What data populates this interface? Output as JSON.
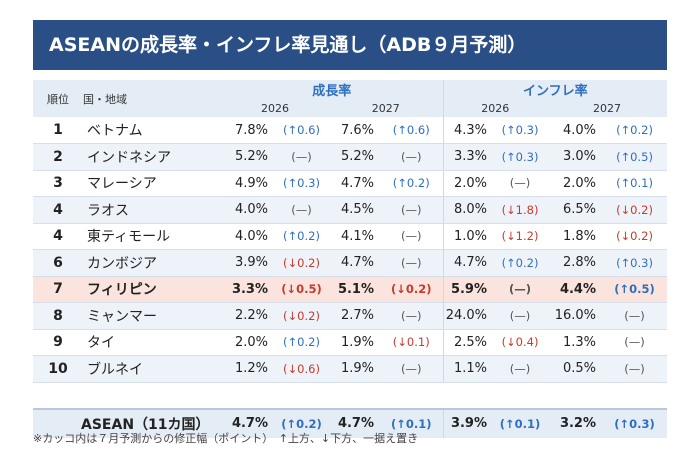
{
  "title": "ASEANの成長率・インフレ率見通し（ADB９月予測）",
  "header": {
    "rank": "順位",
    "country": "国・地域",
    "growth": "成長率",
    "inflation": "インフレ率",
    "years": [
      "2026",
      "2027",
      "2026",
      "2027"
    ]
  },
  "rows": [
    {
      "rank": "1",
      "country": "ベトナム",
      "g26": "7.8%",
      "g26c": "(↑0.6)",
      "g27": "7.6%",
      "g27c": "(↑0.6)",
      "i26": "4.3%",
      "i26c": "(↑0.3)",
      "i27": "4.0%",
      "i27c": "(↑0.2)",
      "dirs": [
        "up",
        "up",
        "up",
        "up"
      ]
    },
    {
      "rank": "2",
      "country": "インドネシア",
      "g26": "5.2%",
      "g26c": "(—)",
      "g27": "5.2%",
      "g27c": "(—)",
      "i26": "3.3%",
      "i26c": "(↑0.3)",
      "i27": "3.0%",
      "i27c": "(↑0.5)",
      "dirs": [
        "same",
        "same",
        "up",
        "up"
      ]
    },
    {
      "rank": "3",
      "country": "マレーシア",
      "g26": "4.9%",
      "g26c": "(↑0.3)",
      "g27": "4.7%",
      "g27c": "(↑0.2)",
      "i26": "2.0%",
      "i26c": "(—)",
      "i27": "2.0%",
      "i27c": "(↑0.1)",
      "dirs": [
        "up",
        "up",
        "same",
        "up"
      ]
    },
    {
      "rank": "4",
      "country": "ラオス",
      "g26": "4.0%",
      "g26c": "(—)",
      "g27": "4.5%",
      "g27c": "(—)",
      "i26": "8.0%",
      "i26c": "(↓1.8)",
      "i27": "6.5%",
      "i27c": "(↓0.2)",
      "dirs": [
        "same",
        "same",
        "down",
        "down"
      ]
    },
    {
      "rank": "4",
      "country": "東ティモール",
      "g26": "4.0%",
      "g26c": "(↑0.2)",
      "g27": "4.1%",
      "g27c": "(—)",
      "i26": "1.0%",
      "i26c": "(↓1.2)",
      "i27": "1.8%",
      "i27c": "(↓0.2)",
      "dirs": [
        "up",
        "same",
        "down",
        "down"
      ]
    },
    {
      "rank": "6",
      "country": "カンボジア",
      "g26": "3.9%",
      "g26c": "(↓0.2)",
      "g27": "4.7%",
      "g27c": "(—)",
      "i26": "4.7%",
      "i26c": "(↑0.2)",
      "i27": "2.8%",
      "i27c": "(↑0.3)",
      "dirs": [
        "down",
        "same",
        "up",
        "up"
      ]
    },
    {
      "rank": "7",
      "country": "フィリピン",
      "g26": "3.3%",
      "g26c": "(↓0.5)",
      "g27": "5.1%",
      "g27c": "(↓0.2)",
      "i26": "5.9%",
      "i26c": "(—)",
      "i27": "4.4%",
      "i27c": "(↑0.5)",
      "dirs": [
        "down",
        "down",
        "same",
        "up"
      ],
      "highlight": true
    },
    {
      "rank": "8",
      "country": "ミャンマー",
      "g26": "2.2%",
      "g26c": "(↓0.2)",
      "g27": "2.7%",
      "g27c": "(—)",
      "i26": "24.0%",
      "i26c": "(—)",
      "i27": "16.0%",
      "i27c": "(—)",
      "dirs": [
        "down",
        "same",
        "same",
        "same"
      ]
    },
    {
      "rank": "9",
      "country": "タイ",
      "g26": "2.0%",
      "g26c": "(↑0.2)",
      "g27": "1.9%",
      "g27c": "(↓0.1)",
      "i26": "2.5%",
      "i26c": "(↓0.4)",
      "i27": "1.3%",
      "i27c": "(—)",
      "dirs": [
        "up",
        "down",
        "down",
        "same"
      ]
    },
    {
      "rank": "10",
      "country": "ブルネイ",
      "g26": "1.2%",
      "g26c": "(↓0.6)",
      "g27": "1.9%",
      "g27c": "(—)",
      "i26": "1.1%",
      "i26c": "(—)",
      "i27": "0.5%",
      "i27c": "(—)",
      "dirs": [
        "down",
        "same",
        "same",
        "same"
      ]
    }
  ],
  "asean": {
    "country": "ASEAN（11カ国）",
    "g26": "4.7%",
    "g26c": "(↑0.2)",
    "g27": "4.7%",
    "g27c": "(↑0.1)",
    "i26": "3.9%",
    "i26c": "(↑0.1)",
    "i27": "3.2%",
    "i27c": "(↑0.3)",
    "dirs": [
      "up",
      "up",
      "up",
      "up"
    ]
  },
  "footnote": "※カッコ内は７月予測からの修正幅（ポイント）　↑上方、↓下方、一据え置き",
  "colors": {
    "title_bg": "#2a4f86",
    "accent": "#2f6fc0",
    "up": "#2f6fc0",
    "down": "#c73a2e",
    "highlight_bg": "#fbe4de"
  }
}
